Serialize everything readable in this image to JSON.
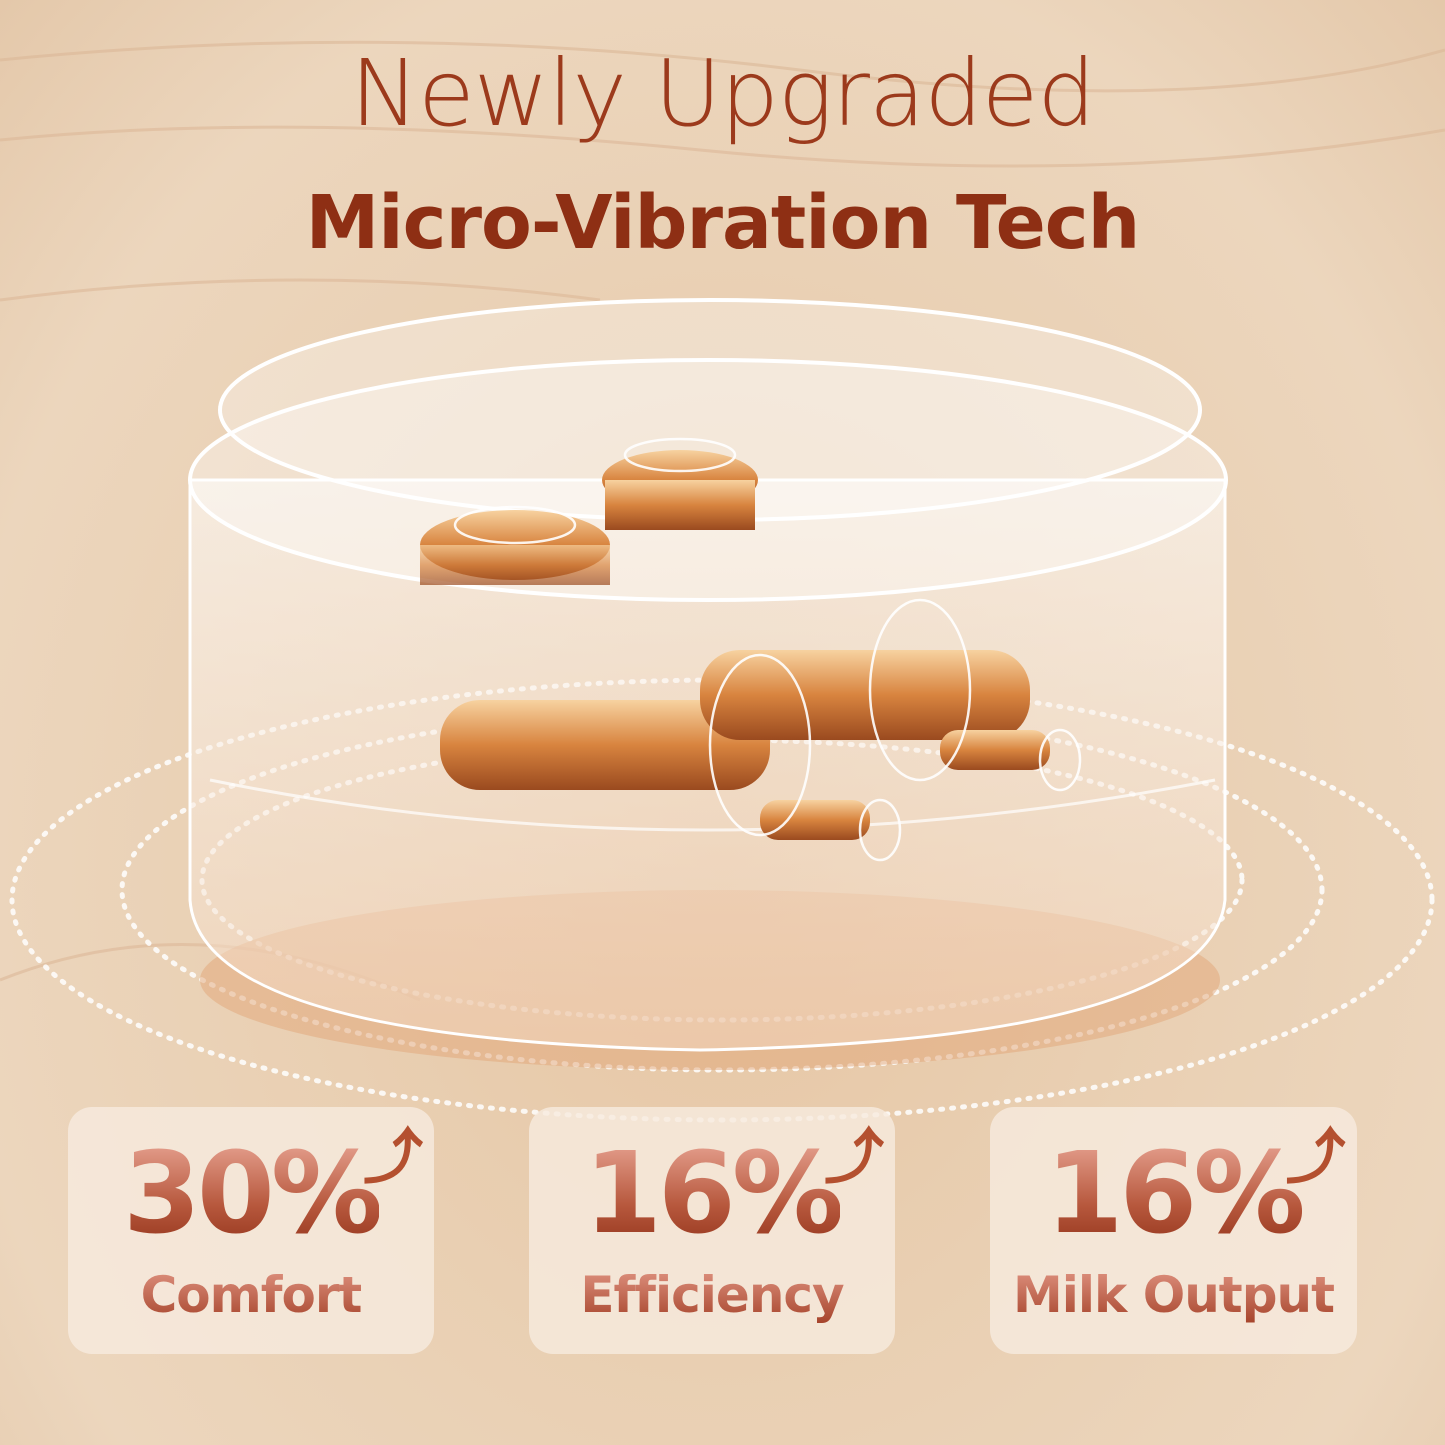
{
  "headline": {
    "line1": "Newly Upgraded",
    "line2": "Micro-Vibration Tech"
  },
  "stats": [
    {
      "value": "30%",
      "label": "Comfort",
      "trend": "up-arrow-icon"
    },
    {
      "value": "16%",
      "label": "Efficiency",
      "trend": "up-arrow-icon"
    },
    {
      "value": "16%",
      "label": "Milk Output",
      "trend": "up-arrow-icon"
    }
  ],
  "colors": {
    "accent": "#9c3a1c",
    "background": "#e9cfb2",
    "gold": "#d98a4a"
  }
}
